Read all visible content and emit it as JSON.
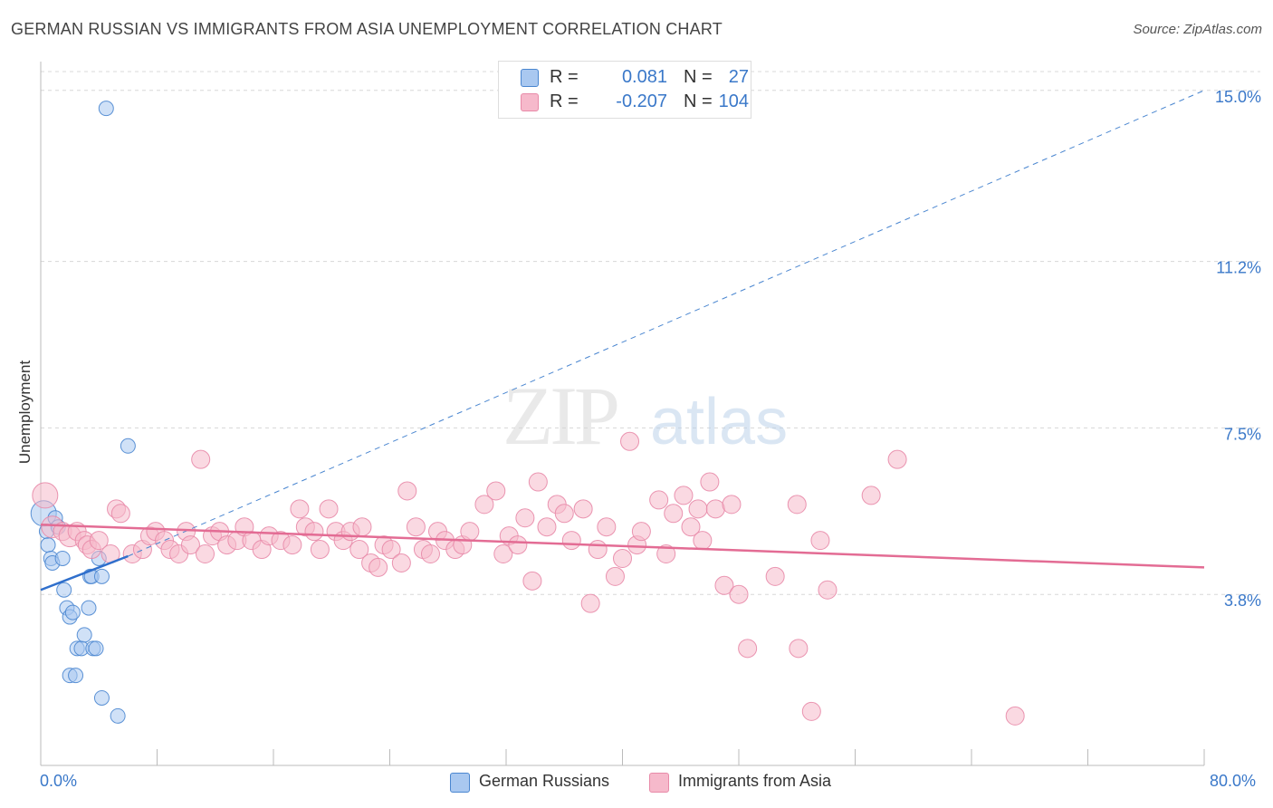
{
  "title": "GERMAN RUSSIAN VS IMMIGRANTS FROM ASIA UNEMPLOYMENT CORRELATION CHART",
  "source": "Source: ZipAtlas.com",
  "watermark": {
    "zip": "ZIP",
    "atlas": "atlas"
  },
  "legend_top": {
    "rows": [
      {
        "r_label": "R =",
        "r_value": "0.081",
        "n_label": "N =",
        "n_value": "27",
        "color": "#a9c8f0"
      },
      {
        "r_label": "R =",
        "r_value": "-0.207",
        "n_label": "N =",
        "n_value": "104",
        "color": "#f6b9cb"
      }
    ]
  },
  "legend_bottom": {
    "items": [
      {
        "label": "German Russians",
        "color": "#a9c8f0"
      },
      {
        "label": "Immigrants from Asia",
        "color": "#f6b9cb"
      }
    ]
  },
  "x_axis": {
    "min_label": "0.0%",
    "max_label": "80.0%"
  },
  "chart_data": {
    "type": "scatter",
    "title": "GERMAN RUSSIAN VS IMMIGRANTS FROM ASIA UNEMPLOYMENT CORRELATION CHART",
    "xlabel": "",
    "ylabel": "Unemployment",
    "xlim": [
      0,
      80
    ],
    "ylim": [
      0,
      15.6
    ],
    "y_ticks": [
      {
        "value": 3.8,
        "label": "3.8%"
      },
      {
        "value": 7.5,
        "label": "7.5%"
      },
      {
        "value": 11.2,
        "label": "11.2%"
      },
      {
        "value": 15.0,
        "label": "15.0%"
      }
    ],
    "x_ticks": [
      0,
      8,
      16,
      24,
      32,
      40,
      48,
      56,
      64,
      72,
      80
    ],
    "grid": true,
    "legend": "top-center",
    "series": [
      {
        "name": "German Russians",
        "color": "#a9c8f0",
        "stroke": "#4a86d0",
        "r": 0.081,
        "n": 27,
        "points": [
          [
            0.2,
            5.6,
            14
          ],
          [
            0.4,
            5.2,
            8
          ],
          [
            0.5,
            4.9,
            8
          ],
          [
            0.7,
            4.6,
            8
          ],
          [
            0.8,
            4.5,
            8
          ],
          [
            1.0,
            5.5,
            8
          ],
          [
            1.2,
            5.3,
            8
          ],
          [
            1.5,
            4.6,
            8
          ],
          [
            1.6,
            3.9,
            8
          ],
          [
            1.8,
            3.5,
            8
          ],
          [
            2.0,
            3.3,
            8
          ],
          [
            2.2,
            3.4,
            8
          ],
          [
            2.5,
            2.6,
            8
          ],
          [
            2.8,
            2.6,
            8
          ],
          [
            3.0,
            2.9,
            8
          ],
          [
            2.0,
            2.0,
            8
          ],
          [
            2.4,
            2.0,
            8
          ],
          [
            3.3,
            3.5,
            8
          ],
          [
            3.6,
            2.6,
            8
          ],
          [
            3.4,
            4.2,
            8
          ],
          [
            4.0,
            4.6,
            8
          ],
          [
            3.8,
            2.6,
            8
          ],
          [
            3.5,
            4.2,
            8
          ],
          [
            4.2,
            4.2,
            8
          ],
          [
            4.2,
            1.5,
            8
          ],
          [
            5.3,
            1.1,
            8
          ],
          [
            6.0,
            7.1,
            8
          ],
          [
            4.5,
            14.6,
            8
          ]
        ],
        "trend": {
          "x": [
            0,
            6
          ],
          "y": [
            3.9,
            4.65
          ],
          "dashed_to": [
            80,
            15.0
          ]
        }
      },
      {
        "name": "Immigrants from Asia",
        "color": "#f6b9cb",
        "stroke": "#e88aa8",
        "r": -0.207,
        "n": 104,
        "points": [
          [
            0.3,
            6.0,
            14
          ],
          [
            0.8,
            5.3,
            12
          ],
          [
            1.5,
            5.2,
            10
          ],
          [
            2.0,
            5.1,
            12
          ],
          [
            2.5,
            5.2,
            10
          ],
          [
            3.0,
            5.0,
            10
          ],
          [
            3.2,
            4.9,
            10
          ],
          [
            3.5,
            4.8,
            10
          ],
          [
            4.0,
            5.0,
            10
          ],
          [
            4.8,
            4.7,
            10
          ],
          [
            5.2,
            5.7,
            10
          ],
          [
            5.5,
            5.6,
            10
          ],
          [
            6.3,
            4.7,
            10
          ],
          [
            7.0,
            4.8,
            10
          ],
          [
            7.5,
            5.1,
            10
          ],
          [
            7.9,
            5.2,
            10
          ],
          [
            8.5,
            5.0,
            10
          ],
          [
            8.9,
            4.8,
            10
          ],
          [
            9.5,
            4.7,
            10
          ],
          [
            10.0,
            5.2,
            10
          ],
          [
            10.3,
            4.9,
            10
          ],
          [
            11.0,
            6.8,
            10
          ],
          [
            11.3,
            4.7,
            10
          ],
          [
            11.8,
            5.1,
            10
          ],
          [
            12.3,
            5.2,
            10
          ],
          [
            12.8,
            4.9,
            10
          ],
          [
            13.5,
            5.0,
            10
          ],
          [
            14.0,
            5.3,
            10
          ],
          [
            14.5,
            5.0,
            10
          ],
          [
            15.2,
            4.8,
            10
          ],
          [
            15.7,
            5.1,
            10
          ],
          [
            16.5,
            5.0,
            10
          ],
          [
            17.3,
            4.9,
            10
          ],
          [
            17.8,
            5.7,
            10
          ],
          [
            18.2,
            5.3,
            10
          ],
          [
            18.8,
            5.2,
            10
          ],
          [
            19.2,
            4.8,
            10
          ],
          [
            19.8,
            5.7,
            10
          ],
          [
            20.3,
            5.2,
            10
          ],
          [
            20.8,
            5.0,
            10
          ],
          [
            21.3,
            5.2,
            10
          ],
          [
            21.9,
            4.8,
            10
          ],
          [
            22.1,
            5.3,
            10
          ],
          [
            22.7,
            4.5,
            10
          ],
          [
            23.2,
            4.4,
            10
          ],
          [
            23.6,
            4.9,
            10
          ],
          [
            24.1,
            4.8,
            10
          ],
          [
            24.8,
            4.5,
            10
          ],
          [
            25.2,
            6.1,
            10
          ],
          [
            25.8,
            5.3,
            10
          ],
          [
            26.3,
            4.8,
            10
          ],
          [
            26.8,
            4.7,
            10
          ],
          [
            27.3,
            5.2,
            10
          ],
          [
            27.8,
            5.0,
            10
          ],
          [
            28.5,
            4.8,
            10
          ],
          [
            29.0,
            4.9,
            10
          ],
          [
            29.5,
            5.2,
            10
          ],
          [
            30.5,
            5.8,
            10
          ],
          [
            31.3,
            6.1,
            10
          ],
          [
            31.8,
            4.7,
            10
          ],
          [
            32.2,
            5.1,
            10
          ],
          [
            32.8,
            4.9,
            10
          ],
          [
            33.3,
            5.5,
            10
          ],
          [
            33.8,
            4.1,
            10
          ],
          [
            34.2,
            6.3,
            10
          ],
          [
            34.8,
            5.3,
            10
          ],
          [
            35.5,
            5.8,
            10
          ],
          [
            36.0,
            5.6,
            10
          ],
          [
            36.5,
            5.0,
            10
          ],
          [
            37.3,
            5.7,
            10
          ],
          [
            37.8,
            3.6,
            10
          ],
          [
            38.3,
            4.8,
            10
          ],
          [
            38.9,
            5.3,
            10
          ],
          [
            39.5,
            4.2,
            10
          ],
          [
            40.0,
            4.6,
            10
          ],
          [
            40.5,
            7.2,
            10
          ],
          [
            41.0,
            4.9,
            10
          ],
          [
            41.3,
            5.2,
            10
          ],
          [
            42.5,
            5.9,
            10
          ],
          [
            43.0,
            4.7,
            10
          ],
          [
            43.5,
            5.6,
            10
          ],
          [
            44.2,
            6.0,
            10
          ],
          [
            44.7,
            5.3,
            10
          ],
          [
            45.2,
            5.7,
            10
          ],
          [
            45.5,
            5.0,
            10
          ],
          [
            46.0,
            6.3,
            10
          ],
          [
            46.4,
            5.7,
            10
          ],
          [
            47.0,
            4.0,
            10
          ],
          [
            47.5,
            5.8,
            10
          ],
          [
            48.0,
            3.8,
            10
          ],
          [
            48.6,
            2.6,
            10
          ],
          [
            50.5,
            4.2,
            10
          ],
          [
            52.0,
            5.8,
            10
          ],
          [
            52.1,
            2.6,
            10
          ],
          [
            53.0,
            1.2,
            10
          ],
          [
            53.6,
            5.0,
            10
          ],
          [
            54.1,
            3.9,
            10
          ],
          [
            57.1,
            6.0,
            10
          ],
          [
            58.9,
            6.8,
            10
          ],
          [
            67.0,
            1.1,
            10
          ]
        ],
        "trend": {
          "x": [
            0,
            80
          ],
          "y": [
            5.35,
            4.4
          ]
        }
      }
    ]
  }
}
